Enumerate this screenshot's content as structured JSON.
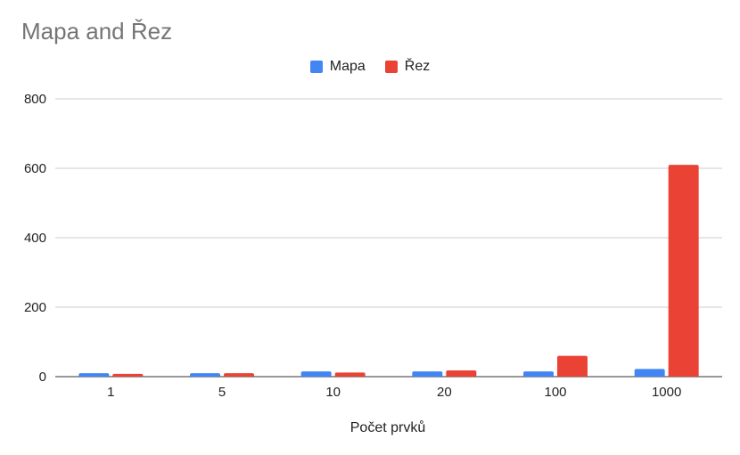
{
  "chart_data": {
    "type": "bar",
    "title": "Mapa and Řez",
    "xlabel": "Počet prvků",
    "ylabel": "",
    "categories": [
      "1",
      "5",
      "10",
      "20",
      "100",
      "1000"
    ],
    "series": [
      {
        "name": "Mapa",
        "values": [
          10,
          10,
          15,
          15,
          15,
          22
        ]
      },
      {
        "name": "Řez",
        "values": [
          8,
          10,
          12,
          18,
          60,
          610
        ]
      }
    ],
    "ylim": [
      0,
      800
    ],
    "yticks": [
      "0",
      "200",
      "400",
      "600",
      "800"
    ],
    "colors": {
      "Mapa": "#4285F4",
      "Řez": "#EA4335"
    },
    "grid": true,
    "legend_position": "top"
  }
}
